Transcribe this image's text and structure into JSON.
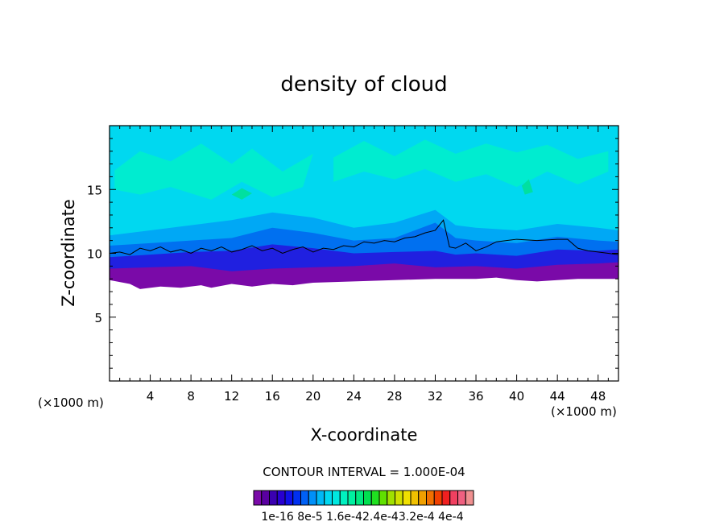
{
  "chart_data": {
    "type": "heatmap",
    "title": "density of cloud",
    "xlabel": "X-coordinate",
    "ylabel": "Z-coordinate",
    "x_unit": "(×1000 m)",
    "y_unit": "(×1000 m)",
    "xlim": [
      0,
      50
    ],
    "ylim": [
      0,
      20
    ],
    "xticks": [
      4,
      8,
      12,
      16,
      20,
      24,
      28,
      32,
      36,
      40,
      44,
      48
    ],
    "yticks": [
      5,
      10,
      15
    ],
    "contour_interval_text": "CONTOUR INTERVAL = 1.000E-04",
    "colorbar": {
      "colors": [
        "#7a0aa8",
        "#5a00a0",
        "#3a00b0",
        "#2800d0",
        "#1010e8",
        "#0030f0",
        "#0060f5",
        "#0090f8",
        "#00b8f5",
        "#00d8f0",
        "#00e8e0",
        "#00f0c0",
        "#00f0a0",
        "#00e880",
        "#00e050",
        "#20e020",
        "#60e000",
        "#a0e000",
        "#d0e000",
        "#f0e000",
        "#f0c000",
        "#f0a000",
        "#f07000",
        "#f04000",
        "#f02020",
        "#f04060",
        "#f06080",
        "#f09090"
      ],
      "labels": [
        "1e-16",
        "8e-5",
        "1.6e-4",
        "2.4e-4",
        "3.2e-4",
        "4e-4"
      ],
      "label_text": "1e-16 8e-5 1.6e-42.4e-43.2e-4 4e-4"
    },
    "layers": [
      {
        "name": "1e-16",
        "color": "#7a0aa8",
        "bottom": [
          [
            0,
            7.9
          ],
          [
            2,
            7.6
          ],
          [
            3,
            7.2
          ],
          [
            5,
            7.4
          ],
          [
            7,
            7.3
          ],
          [
            9,
            7.5
          ],
          [
            10,
            7.3
          ],
          [
            12,
            7.6
          ],
          [
            14,
            7.4
          ],
          [
            16,
            7.6
          ],
          [
            18,
            7.5
          ],
          [
            20,
            7.7
          ],
          [
            24,
            7.8
          ],
          [
            28,
            7.9
          ],
          [
            32,
            8.0
          ],
          [
            36,
            8.0
          ],
          [
            38,
            8.1
          ],
          [
            40,
            7.9
          ],
          [
            42,
            7.8
          ],
          [
            44,
            7.9
          ],
          [
            46,
            8.0
          ],
          [
            48,
            8.0
          ],
          [
            50,
            8.0
          ]
        ],
        "top": [
          [
            0,
            20
          ],
          [
            50,
            20
          ]
        ]
      },
      {
        "name": "blue",
        "color": "#2020e0",
        "bottom": [
          [
            0,
            8.8
          ],
          [
            4,
            8.9
          ],
          [
            8,
            9.0
          ],
          [
            12,
            8.6
          ],
          [
            16,
            8.8
          ],
          [
            20,
            8.9
          ],
          [
            24,
            9.0
          ],
          [
            28,
            9.2
          ],
          [
            32,
            8.9
          ],
          [
            36,
            9.0
          ],
          [
            40,
            8.8
          ],
          [
            44,
            9.1
          ],
          [
            48,
            9.2
          ],
          [
            50,
            9.3
          ]
        ],
        "top": [
          [
            0,
            20
          ],
          [
            50,
            20
          ]
        ]
      },
      {
        "name": "mid-blue",
        "color": "#0070f0",
        "bottom": [
          [
            0,
            9.7
          ],
          [
            4,
            9.9
          ],
          [
            8,
            10.1
          ],
          [
            12,
            10.2
          ],
          [
            16,
            10.7
          ],
          [
            20,
            10.4
          ],
          [
            24,
            10.0
          ],
          [
            28,
            10.1
          ],
          [
            32,
            10.2
          ],
          [
            34,
            9.9
          ],
          [
            36,
            10.0
          ],
          [
            40,
            9.8
          ],
          [
            44,
            10.3
          ],
          [
            48,
            10.2
          ],
          [
            50,
            10.3
          ]
        ],
        "top": [
          [
            0,
            20
          ],
          [
            50,
            20
          ]
        ]
      },
      {
        "name": "light-blue",
        "color": "#00a8f5",
        "bottom": [
          [
            0,
            10.6
          ],
          [
            4,
            10.8
          ],
          [
            8,
            11.0
          ],
          [
            12,
            11.2
          ],
          [
            16,
            12.0
          ],
          [
            20,
            11.6
          ],
          [
            24,
            11.0
          ],
          [
            28,
            11.2
          ],
          [
            32,
            12.4
          ],
          [
            34,
            11.2
          ],
          [
            36,
            11.0
          ],
          [
            40,
            10.8
          ],
          [
            44,
            11.3
          ],
          [
            48,
            11.0
          ],
          [
            50,
            10.9
          ]
        ],
        "top": [
          [
            0,
            20
          ],
          [
            50,
            20
          ]
        ]
      },
      {
        "name": "cyan",
        "color": "#00d8f0",
        "bottom": [
          [
            0,
            11.4
          ],
          [
            4,
            11.8
          ],
          [
            8,
            12.2
          ],
          [
            12,
            12.6
          ],
          [
            16,
            13.2
          ],
          [
            20,
            12.8
          ],
          [
            24,
            12.0
          ],
          [
            28,
            12.4
          ],
          [
            32,
            13.4
          ],
          [
            34,
            12.2
          ],
          [
            36,
            12.0
          ],
          [
            40,
            11.8
          ],
          [
            44,
            12.3
          ],
          [
            48,
            12.0
          ],
          [
            50,
            11.8
          ]
        ],
        "top": [
          [
            0,
            20
          ],
          [
            50,
            20
          ]
        ]
      }
    ],
    "contour_line": [
      [
        0,
        10.0
      ],
      [
        1,
        10.1
      ],
      [
        2,
        9.9
      ],
      [
        3,
        10.4
      ],
      [
        4,
        10.2
      ],
      [
        5,
        10.5
      ],
      [
        6,
        10.1
      ],
      [
        7,
        10.3
      ],
      [
        8,
        10.0
      ],
      [
        9,
        10.4
      ],
      [
        10,
        10.2
      ],
      [
        11,
        10.5
      ],
      [
        12,
        10.1
      ],
      [
        13,
        10.3
      ],
      [
        14,
        10.6
      ],
      [
        15,
        10.2
      ],
      [
        16,
        10.4
      ],
      [
        17,
        10.0
      ],
      [
        18,
        10.3
      ],
      [
        19,
        10.5
      ],
      [
        20,
        10.1
      ],
      [
        21,
        10.4
      ],
      [
        22,
        10.3
      ],
      [
        23,
        10.6
      ],
      [
        24,
        10.5
      ],
      [
        25,
        10.9
      ],
      [
        26,
        10.8
      ],
      [
        27,
        11.0
      ],
      [
        28,
        10.9
      ],
      [
        29,
        11.2
      ],
      [
        30,
        11.3
      ],
      [
        31,
        11.6
      ],
      [
        32,
        11.8
      ],
      [
        32.8,
        12.6
      ],
      [
        33.4,
        10.5
      ],
      [
        34,
        10.4
      ],
      [
        35,
        10.8
      ],
      [
        36,
        10.2
      ],
      [
        37,
        10.5
      ],
      [
        38,
        10.9
      ],
      [
        39,
        11.0
      ],
      [
        40,
        11.1
      ],
      [
        42,
        11.0
      ],
      [
        44,
        11.1
      ],
      [
        45,
        11.1
      ],
      [
        46,
        10.4
      ],
      [
        47,
        10.2
      ],
      [
        48,
        10.1
      ],
      [
        49,
        10.0
      ],
      [
        50,
        9.9
      ]
    ],
    "color_patches": [
      {
        "color": "#00ecd0",
        "points": [
          [
            0.5,
            16.5
          ],
          [
            3,
            18.0
          ],
          [
            6,
            17.2
          ],
          [
            9,
            18.6
          ],
          [
            12,
            17.0
          ],
          [
            14,
            18.2
          ],
          [
            17,
            16.4
          ],
          [
            20,
            17.8
          ],
          [
            19,
            15.2
          ],
          [
            16,
            14.4
          ],
          [
            13,
            15.6
          ],
          [
            10,
            14.2
          ],
          [
            6,
            15.2
          ],
          [
            3,
            14.6
          ],
          [
            0.5,
            15.0
          ]
        ]
      },
      {
        "color": "#00ecd0",
        "points": [
          [
            22,
            17.5
          ],
          [
            25,
            18.8
          ],
          [
            28,
            17.6
          ],
          [
            31,
            18.9
          ],
          [
            34,
            17.8
          ],
          [
            37,
            18.6
          ],
          [
            40,
            17.9
          ],
          [
            43,
            18.5
          ],
          [
            46,
            17.4
          ],
          [
            49,
            18.0
          ],
          [
            49,
            16.4
          ],
          [
            46,
            15.4
          ],
          [
            43,
            16.4
          ],
          [
            40,
            15.2
          ],
          [
            37,
            16.2
          ],
          [
            34,
            15.6
          ],
          [
            31,
            16.6
          ],
          [
            28,
            15.8
          ],
          [
            25,
            16.4
          ],
          [
            22,
            15.6
          ]
        ]
      },
      {
        "color": "#00d8f0",
        "points": [
          [
            26,
            15.5
          ],
          [
            28,
            14.2
          ],
          [
            30,
            15.2
          ],
          [
            31,
            13.6
          ],
          [
            29,
            13.0
          ],
          [
            27,
            13.8
          ]
        ]
      },
      {
        "color": "#00d8f0",
        "points": [
          [
            35,
            15.0
          ],
          [
            37,
            13.5
          ],
          [
            39,
            14.6
          ],
          [
            40,
            13.2
          ],
          [
            38,
            12.6
          ],
          [
            36,
            13.0
          ]
        ]
      },
      {
        "color": "#00e0a0",
        "points": [
          [
            12,
            14.6
          ],
          [
            13,
            15.1
          ],
          [
            14,
            14.7
          ],
          [
            13,
            14.2
          ]
        ]
      },
      {
        "color": "#00e0a0",
        "points": [
          [
            40.5,
            15.3
          ],
          [
            41.2,
            15.8
          ],
          [
            41.6,
            14.8
          ],
          [
            40.8,
            14.6
          ]
        ]
      }
    ]
  }
}
